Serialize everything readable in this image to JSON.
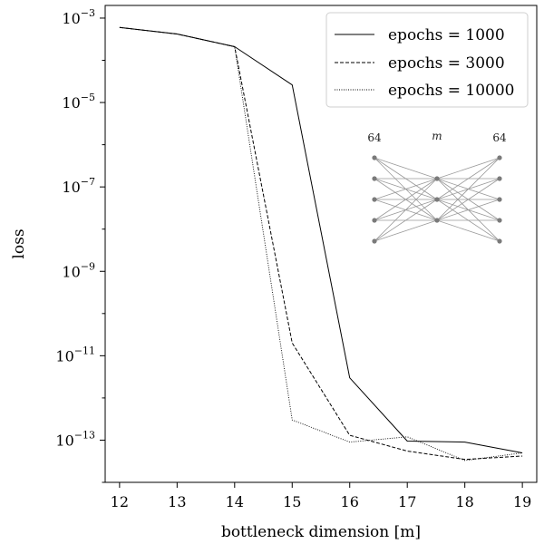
{
  "chart_data": {
    "type": "line",
    "title": "",
    "xlabel": "bottleneck dimension [m]",
    "ylabel": "loss",
    "x": [
      12,
      13,
      14,
      15,
      16,
      17,
      18,
      19
    ],
    "xlim": [
      11.75,
      19.25
    ],
    "y_scale": "log",
    "ylim_log10": [
      -14.0,
      -2.7
    ],
    "x_ticks": [
      12,
      13,
      14,
      15,
      16,
      17,
      18,
      19
    ],
    "y_tick_exponents": [
      -3,
      -5,
      -7,
      -9,
      -11,
      -13
    ],
    "grid": false,
    "legend_position": "top-right",
    "series": [
      {
        "name": "epochs = 1000",
        "line_style": "solid",
        "values": [
          0.0006,
          0.00042,
          0.00021,
          2.6e-05,
          3e-12,
          9.5e-14,
          9e-14,
          5e-14
        ]
      },
      {
        "name": "epochs = 3000",
        "line_style": "dashed",
        "values": [
          0.0006,
          0.00042,
          0.00021,
          2e-11,
          1.3e-13,
          5.5e-14,
          3.5e-14,
          4.2e-14
        ]
      },
      {
        "name": "epochs = 10000",
        "line_style": "dotted",
        "values": [
          0.0006,
          0.00042,
          0.00021,
          3e-13,
          9e-14,
          1.2e-13,
          3.3e-14,
          5e-14
        ]
      }
    ],
    "inset": {
      "description": "autoencoder network schematic",
      "left_label": "64",
      "middle_label": "m",
      "right_label": "64",
      "outer_nodes": 5,
      "middle_nodes": 3
    }
  }
}
